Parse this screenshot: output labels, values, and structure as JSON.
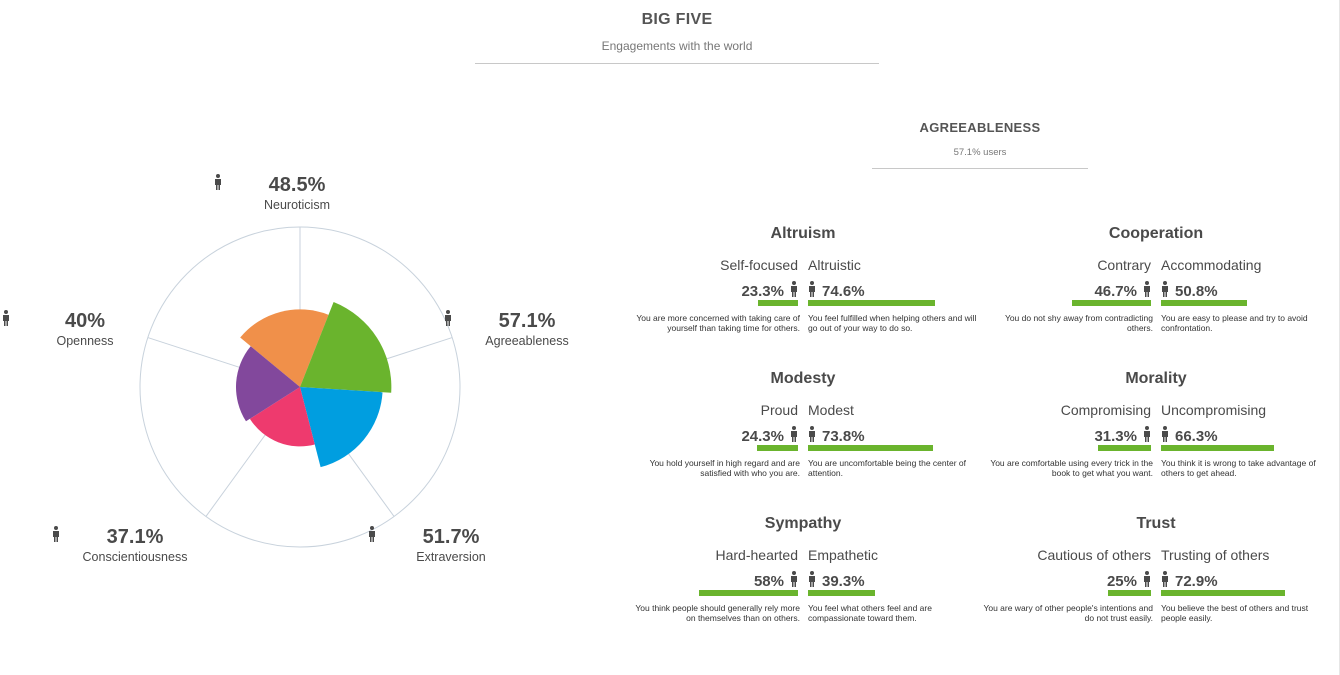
{
  "header": {
    "title": "BIG FIVE",
    "subtitle": "Engagements with the world"
  },
  "chart_data": {
    "type": "polar-area",
    "categories": [
      "Neuroticism",
      "Agreeableness",
      "Extraversion",
      "Conscientiousness",
      "Openness"
    ],
    "values": [
      48.5,
      57.1,
      51.7,
      37.1,
      40
    ],
    "colors": [
      "#f0904a",
      "#6ab42d",
      "#009ee0",
      "#ee3a6e",
      "#82489c"
    ],
    "labels": [
      {
        "pct": "48.5%",
        "name": "Neuroticism"
      },
      {
        "pct": "57.1%",
        "name": "Agreeableness"
      },
      {
        "pct": "51.7%",
        "name": "Extraversion"
      },
      {
        "pct": "37.1%",
        "name": "Conscientiousness"
      },
      {
        "pct": "40%",
        "name": "Openness"
      }
    ],
    "rlim": [
      0,
      100
    ]
  },
  "detail": {
    "title": "AGREEABLENESS",
    "subtitle": "57.1% users",
    "facets": [
      {
        "title": "Altruism",
        "left_label": "Self-focused",
        "right_label": "Altruistic",
        "left_pct": "23.3%",
        "right_pct": "74.6%",
        "left_value": 23.3,
        "right_value": 74.6,
        "left_desc": "You are more concerned with taking care of yourself than taking time for others.",
        "right_desc": "You feel fulfilled when helping others and will go out of your way to do so."
      },
      {
        "title": "Cooperation",
        "left_label": "Contrary",
        "right_label": "Accommodating",
        "left_pct": "46.7%",
        "right_pct": "50.8%",
        "left_value": 46.7,
        "right_value": 50.8,
        "left_desc": "You do not shy away from contradicting others.",
        "right_desc": "You are easy to please and try to avoid confrontation."
      },
      {
        "title": "Modesty",
        "left_label": "Proud",
        "right_label": "Modest",
        "left_pct": "24.3%",
        "right_pct": "73.8%",
        "left_value": 24.3,
        "right_value": 73.8,
        "left_desc": "You hold yourself in high regard and are satisfied with who you are.",
        "right_desc": "You are uncomfortable being the center of attention."
      },
      {
        "title": "Morality",
        "left_label": "Compromising",
        "right_label": "Uncompromising",
        "left_pct": "31.3%",
        "right_pct": "66.3%",
        "left_value": 31.3,
        "right_value": 66.3,
        "left_desc": "You are comfortable using every trick in the book to get what you want.",
        "right_desc": "You think it is wrong to take advantage of others to get ahead."
      },
      {
        "title": "Sympathy",
        "left_label": "Hard-hearted",
        "right_label": "Empathetic",
        "left_pct": "58%",
        "right_pct": "39.3%",
        "left_value": 58,
        "right_value": 39.3,
        "left_desc": "You think people should generally rely more on themselves than on others.",
        "right_desc": "You feel what others feel and are compassionate toward them."
      },
      {
        "title": "Trust",
        "left_label": "Cautious of others",
        "right_label": "Trusting of others",
        "left_pct": "25%",
        "right_pct": "72.9%",
        "left_value": 25,
        "right_value": 72.9,
        "left_desc": "You are wary of other people's intentions and do not trust easily.",
        "right_desc": "You believe the best of others and trust people easily."
      }
    ]
  },
  "icons": {
    "person": "person-icon"
  },
  "colors": {
    "bar": "#6ab42d",
    "text": "#4a4a4a",
    "grid": "#c8d2dc"
  }
}
